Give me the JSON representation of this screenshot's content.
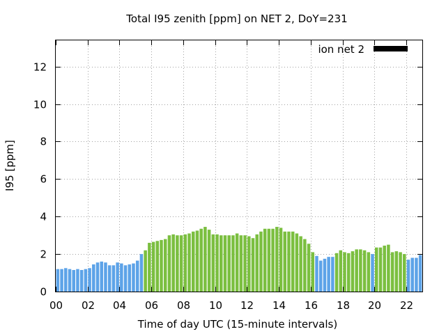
{
  "chart_data": {
    "type": "bar",
    "title": "Total I95 zenith [ppm] on NET 2, DoY=231",
    "xlabel": "Time of day UTC (15-minute intervals)",
    "ylabel": "I95 [ppm]",
    "xlim": [
      0,
      23
    ],
    "ylim": [
      0,
      13.4
    ],
    "x_ticks": [
      "00",
      "02",
      "04",
      "06",
      "08",
      "10",
      "12",
      "14",
      "16",
      "18",
      "20",
      "22"
    ],
    "y_ticks": [
      "0",
      "2",
      "4",
      "6",
      "8",
      "10",
      "12"
    ],
    "grid": true,
    "legend": {
      "label": "ion net 2",
      "color": "#000000",
      "placement": "top-right"
    },
    "colors": {
      "low": "#5da3e8",
      "high": "#7bbf40"
    },
    "interval_hours": 0.25,
    "values": [
      1.2,
      1.2,
      1.25,
      1.2,
      1.15,
      1.2,
      1.15,
      1.2,
      1.25,
      1.45,
      1.55,
      1.6,
      1.55,
      1.4,
      1.4,
      1.55,
      1.5,
      1.4,
      1.45,
      1.5,
      1.65,
      2.0,
      2.2,
      2.6,
      2.65,
      2.7,
      2.75,
      2.8,
      3.0,
      3.05,
      3.0,
      3.0,
      3.05,
      3.1,
      3.2,
      3.25,
      3.35,
      3.45,
      3.3,
      3.05,
      3.05,
      3.0,
      3.0,
      3.0,
      3.0,
      3.1,
      3.0,
      3.0,
      2.95,
      2.85,
      3.05,
      3.2,
      3.35,
      3.35,
      3.35,
      3.45,
      3.4,
      3.2,
      3.2,
      3.2,
      3.1,
      2.95,
      2.8,
      2.55,
      2.1,
      1.9,
      1.65,
      1.75,
      1.85,
      1.85,
      2.05,
      2.2,
      2.1,
      2.05,
      2.15,
      2.25,
      2.25,
      2.2,
      2.1,
      2.0,
      2.35,
      2.35,
      2.45,
      2.5,
      2.1,
      2.15,
      2.1,
      2.0,
      1.7,
      1.8,
      1.8,
      1.95
    ],
    "color_groups": [
      "low",
      "low",
      "low",
      "low",
      "low",
      "low",
      "low",
      "low",
      "low",
      "low",
      "low",
      "low",
      "low",
      "low",
      "low",
      "low",
      "low",
      "low",
      "low",
      "low",
      "low",
      "low",
      "high",
      "high",
      "high",
      "high",
      "high",
      "high",
      "high",
      "high",
      "high",
      "high",
      "high",
      "high",
      "high",
      "high",
      "high",
      "high",
      "high",
      "high",
      "high",
      "high",
      "high",
      "high",
      "high",
      "high",
      "high",
      "high",
      "high",
      "high",
      "high",
      "high",
      "high",
      "high",
      "high",
      "high",
      "high",
      "high",
      "high",
      "high",
      "high",
      "high",
      "high",
      "high",
      "high",
      "low",
      "low",
      "low",
      "low",
      "low",
      "high",
      "high",
      "high",
      "high",
      "high",
      "high",
      "high",
      "high",
      "high",
      "low",
      "high",
      "high",
      "high",
      "high",
      "high",
      "high",
      "high",
      "high",
      "low",
      "low",
      "low",
      "low"
    ]
  }
}
